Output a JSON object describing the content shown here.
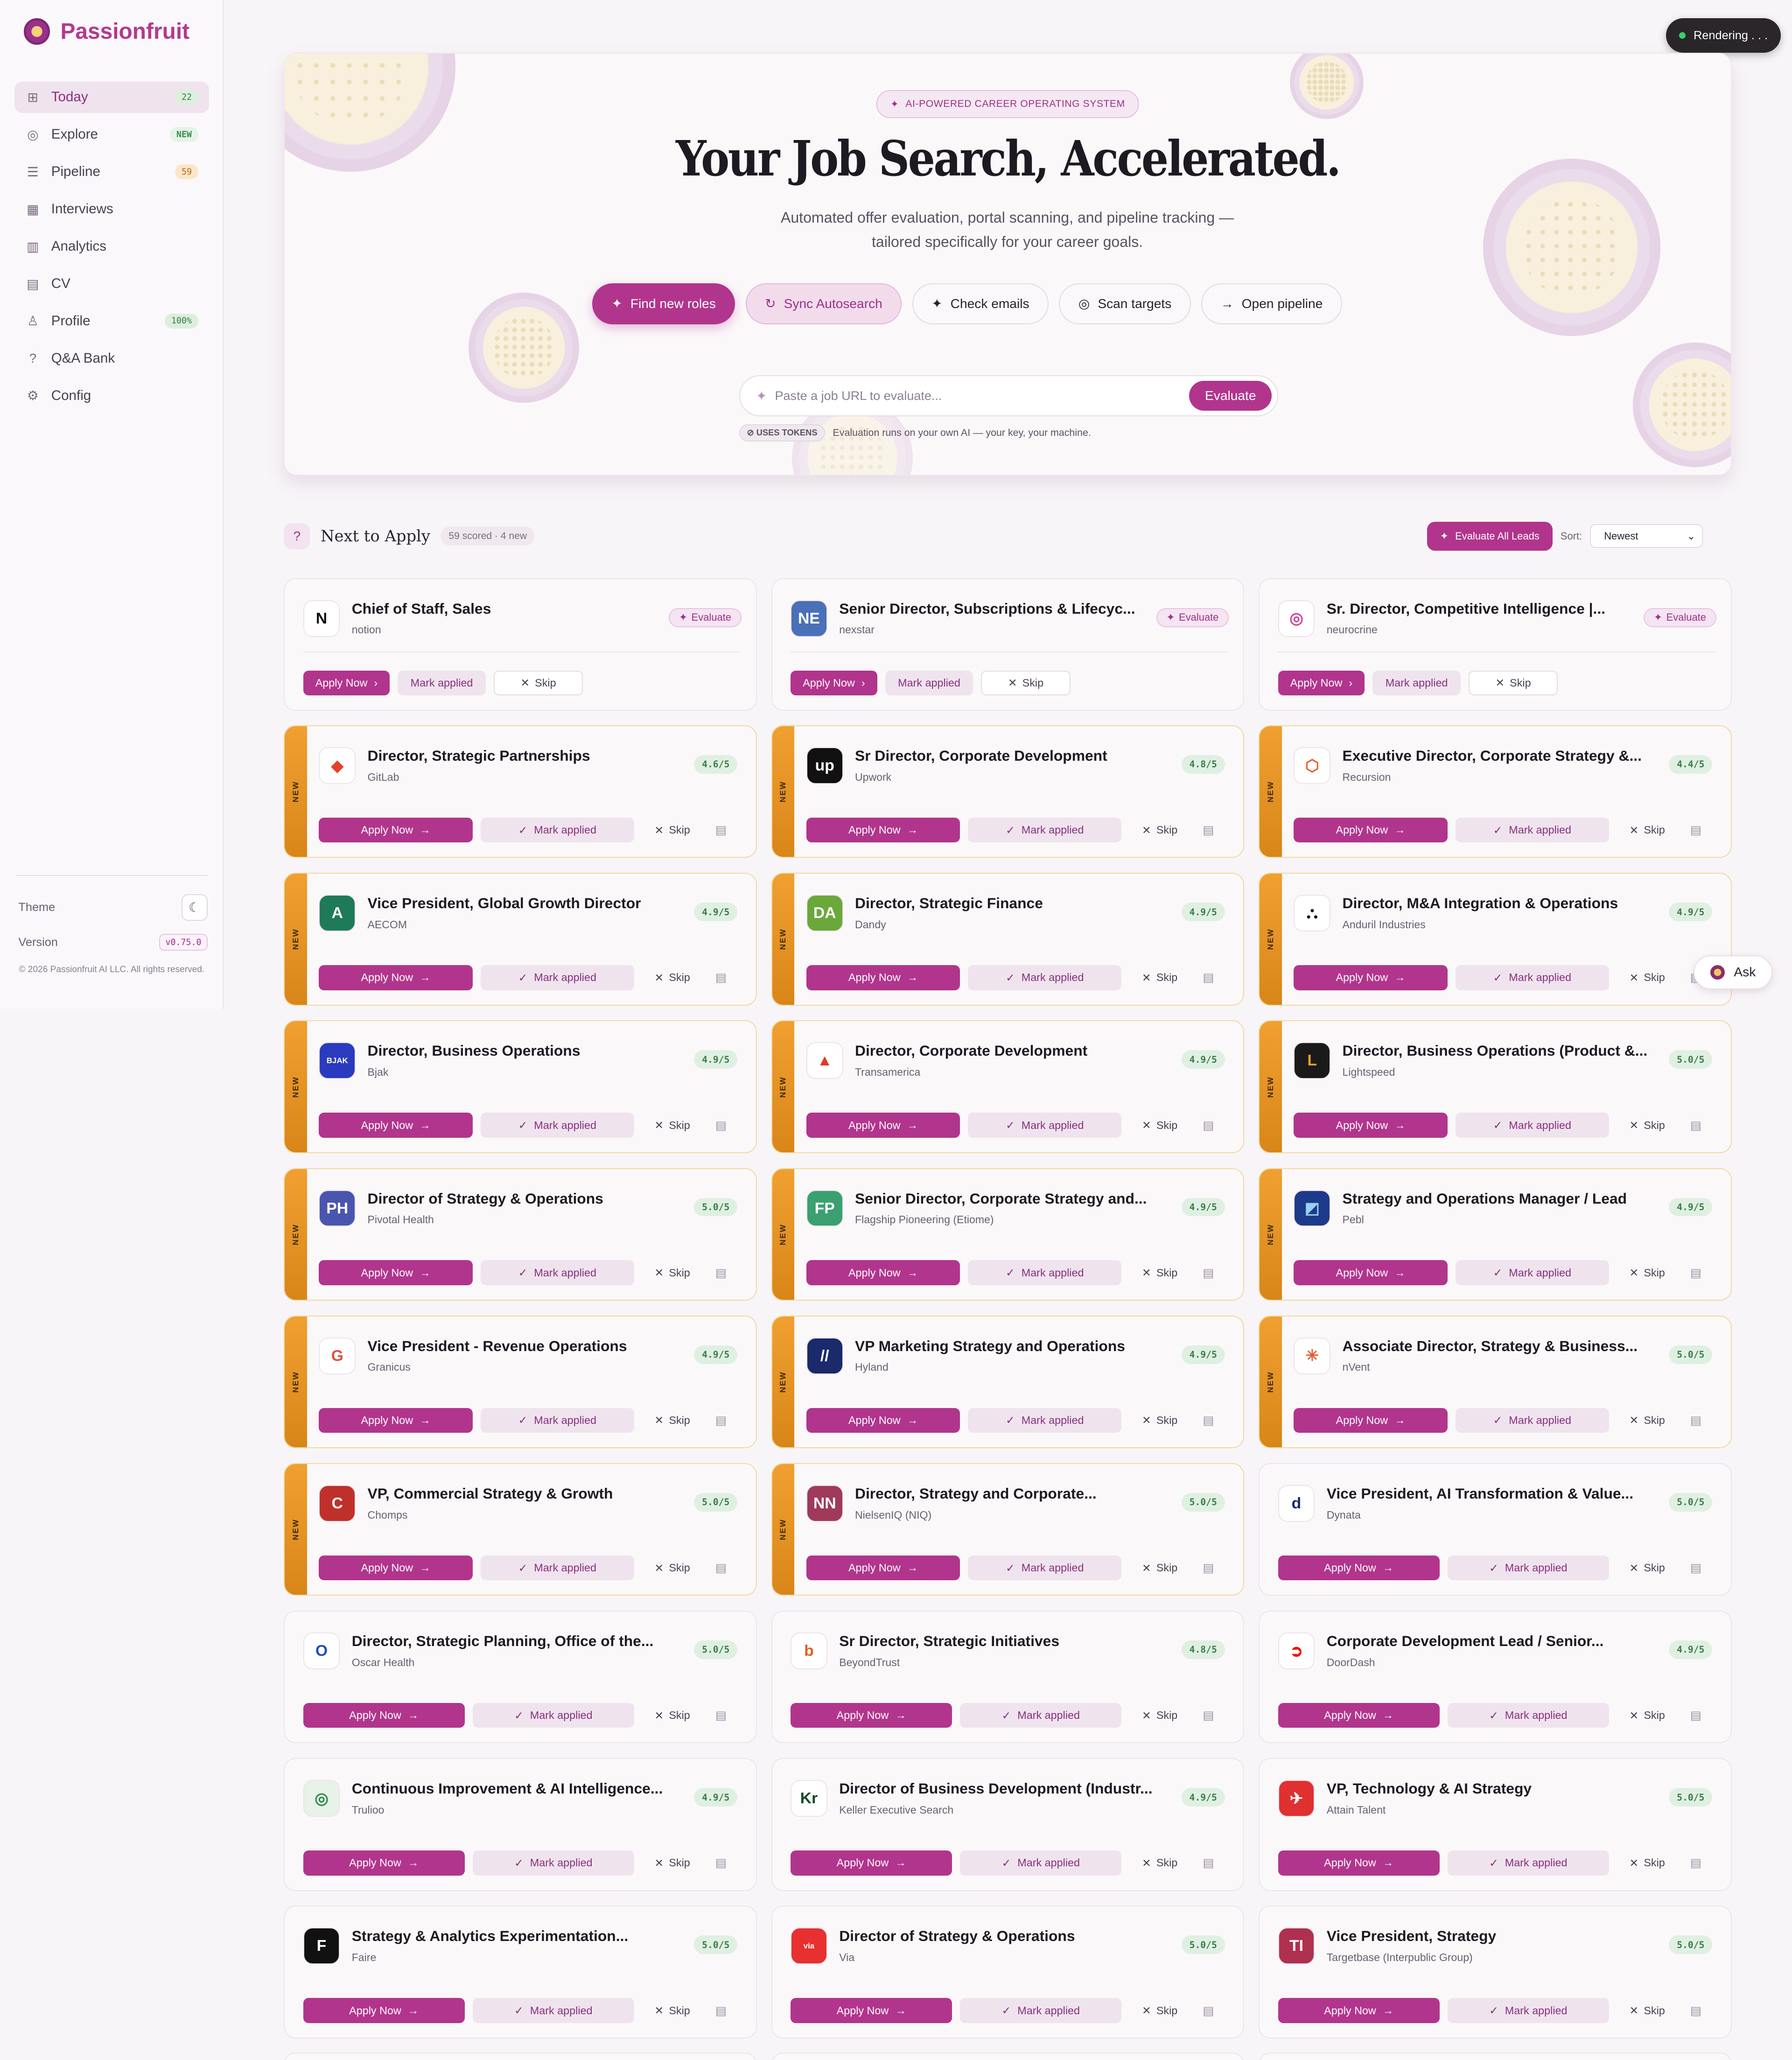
{
  "app": {
    "name": "Passionfruit",
    "status": "Rendering . . ."
  },
  "sidebar": {
    "items": [
      {
        "label": "Today",
        "icon": "grid-icon",
        "badge": "22",
        "active": true
      },
      {
        "label": "Explore",
        "icon": "compass-icon",
        "badge": "NEW"
      },
      {
        "label": "Pipeline",
        "icon": "list-icon",
        "badge": "59"
      },
      {
        "label": "Interviews",
        "icon": "calendar-icon",
        "badge": ""
      },
      {
        "label": "Analytics",
        "icon": "bar-chart-icon",
        "badge": ""
      },
      {
        "label": "CV",
        "icon": "document-icon",
        "badge": ""
      },
      {
        "label": "Profile",
        "icon": "user-icon",
        "badge": "100%"
      },
      {
        "label": "Q&A Bank",
        "icon": "question-icon",
        "badge": ""
      },
      {
        "label": "Config",
        "icon": "gear-icon",
        "badge": ""
      }
    ],
    "theme_label": "Theme",
    "version_label": "Version",
    "version": "v0.75.0",
    "copyright": "© 2026 Passionfruit AI LLC. All rights reserved."
  },
  "hero": {
    "tag": "AI-POWERED CAREER OPERATING SYSTEM",
    "title": "Your Job Search, Accelerated.",
    "subtitle": "Automated offer evaluation, portal scanning, and pipeline tracking — tailored specifically for your career goals.",
    "actions": [
      "Find new roles",
      "Sync Autosearch",
      "Check emails",
      "Scan targets",
      "Open pipeline"
    ],
    "url_placeholder": "Paste a job URL to evaluate...",
    "evaluate_label": "Evaluate",
    "tokens_badge": "USES TOKENS",
    "tokens_note": "Evaluation runs on your own AI — your key, your machine."
  },
  "section": {
    "title": "Next to Apply",
    "badge": "59 scored · 4 new",
    "evaluate_all": "Evaluate All Leads",
    "sort_label": "Sort:",
    "sort_value": "Newest"
  },
  "labels": {
    "apply": "Apply Now",
    "mark": "Mark applied",
    "skip": "Skip",
    "evaluate": "Evaluate",
    "new": "NEW",
    "ask": "Ask"
  },
  "colors": {
    "accent": "#b1358c",
    "new_bar": "#e8951f",
    "score": "#3b7a4a"
  },
  "leads": [
    {
      "title": "Chief of Staff, Sales",
      "company": "notion",
      "logo": "N",
      "logo_bg": "#ffffff",
      "logo_fg": "#111111"
    },
    {
      "title": "Senior Director, Subscriptions & Lifecyc...",
      "company": "nexstar",
      "logo": "NE",
      "logo_bg": "#4a70b8",
      "logo_fg": "#ffffff"
    },
    {
      "title": "Sr. Director, Competitive Intelligence |...",
      "company": "neurocrine",
      "logo": "◎",
      "logo_bg": "#ffffff",
      "logo_fg": "#d0409a"
    }
  ],
  "jobs": [
    {
      "title": "Director, Strategic Partnerships",
      "company": "GitLab",
      "score": "4.6/5",
      "new": true,
      "logo": "◆",
      "logo_bg": "#ffffff",
      "logo_fg": "#e2432a"
    },
    {
      "title": "Sr Director, Corporate Development",
      "company": "Upwork",
      "score": "4.8/5",
      "new": true,
      "logo": "up",
      "logo_bg": "#111111",
      "logo_fg": "#ffffff"
    },
    {
      "title": "Executive Director, Corporate Strategy &...",
      "company": "Recursion",
      "score": "4.4/5",
      "new": true,
      "logo": "⬡",
      "logo_bg": "#ffffff",
      "logo_fg": "#e05a30"
    },
    {
      "title": "Vice President, Global Growth Director",
      "company": "AECOM",
      "score": "4.9/5",
      "new": true,
      "logo": "A",
      "logo_bg": "#1f7a5a",
      "logo_fg": "#ffffff"
    },
    {
      "title": "Director, Strategic Finance",
      "company": "Dandy",
      "score": "4.9/5",
      "new": true,
      "logo": "DA",
      "logo_bg": "#6aa83a",
      "logo_fg": "#ffffff"
    },
    {
      "title": "Director, M&A Integration & Operations",
      "company": "Anduril Industries",
      "score": "4.9/5",
      "new": true,
      "logo": "⛬",
      "logo_bg": "#ffffff",
      "logo_fg": "#111111"
    },
    {
      "title": "Director, Business Operations",
      "company": "Bjak",
      "score": "4.9/5",
      "new": true,
      "logo": "BJAK",
      "logo_bg": "#2a3bc0",
      "logo_fg": "#ffffff"
    },
    {
      "title": "Director, Corporate Development",
      "company": "Transamerica",
      "score": "4.9/5",
      "new": true,
      "logo": "▲",
      "logo_bg": "#ffffff",
      "logo_fg": "#e03a20"
    },
    {
      "title": "Director, Business Operations (Product &...",
      "company": "Lightspeed",
      "score": "5.0/5",
      "new": true,
      "logo": "L",
      "logo_bg": "#1a1a1a",
      "logo_fg": "#e8a030"
    },
    {
      "title": "Director of Strategy & Operations",
      "company": "Pivotal Health",
      "score": "5.0/5",
      "new": true,
      "logo": "PH",
      "logo_bg": "#4a55b0",
      "logo_fg": "#ffffff"
    },
    {
      "title": "Senior Director, Corporate Strategy and...",
      "company": "Flagship Pioneering (Etiome)",
      "score": "4.9/5",
      "new": true,
      "logo": "FP",
      "logo_bg": "#3aa070",
      "logo_fg": "#ffffff"
    },
    {
      "title": "Strategy and Operations Manager / Lead",
      "company": "Pebl",
      "score": "4.9/5",
      "new": true,
      "logo": "◩",
      "logo_bg": "#1e3a8a",
      "logo_fg": "#9ad0f0"
    },
    {
      "title": "Vice President - Revenue Operations",
      "company": "Granicus",
      "score": "4.9/5",
      "new": true,
      "logo": "G",
      "logo_bg": "#ffffff",
      "logo_fg": "#e05040"
    },
    {
      "title": "VP Marketing Strategy and Operations",
      "company": "Hyland",
      "score": "4.9/5",
      "new": true,
      "logo": "//",
      "logo_bg": "#1a2a6a",
      "logo_fg": "#ffffff"
    },
    {
      "title": "Associate Director, Strategy & Business...",
      "company": "nVent",
      "score": "5.0/5",
      "new": true,
      "logo": "✳",
      "logo_bg": "#ffffff",
      "logo_fg": "#e05a30"
    },
    {
      "title": "VP, Commercial Strategy & Growth",
      "company": "Chomps",
      "score": "5.0/5",
      "new": true,
      "logo": "C",
      "logo_bg": "#c0302a",
      "logo_fg": "#ffffff"
    },
    {
      "title": "Director, Strategy and Corporate...",
      "company": "NielsenIQ (NIQ)",
      "score": "5.0/5",
      "new": true,
      "logo": "NN",
      "logo_bg": "#a03a5a",
      "logo_fg": "#ffffff"
    },
    {
      "title": "Vice President, AI Transformation & Value...",
      "company": "Dynata",
      "score": "5.0/5",
      "new": false,
      "logo": "d",
      "logo_bg": "#ffffff",
      "logo_fg": "#1a2a6a"
    },
    {
      "title": "Director, Strategic Planning, Office of the...",
      "company": "Oscar Health",
      "score": "5.0/5",
      "new": false,
      "logo": "O",
      "logo_bg": "#ffffff",
      "logo_fg": "#1a50c0"
    },
    {
      "title": "Sr Director, Strategic Initiatives",
      "company": "BeyondTrust",
      "score": "4.8/5",
      "new": false,
      "logo": "b",
      "logo_bg": "#ffffff",
      "logo_fg": "#e06020"
    },
    {
      "title": "Corporate Development Lead / Senior...",
      "company": "DoorDash",
      "score": "4.9/5",
      "new": false,
      "logo": "➲",
      "logo_bg": "#ffffff",
      "logo_fg": "#eb1700"
    },
    {
      "title": "Continuous Improvement & AI Intelligence...",
      "company": "Trulioo",
      "score": "4.9/5",
      "new": false,
      "logo": "◎",
      "logo_bg": "#e8f2e8",
      "logo_fg": "#2a8a4a"
    },
    {
      "title": "Director of Business Development (Industr...",
      "company": "Keller Executive Search",
      "score": "4.9/5",
      "new": false,
      "logo": "Kr",
      "logo_bg": "#ffffff",
      "logo_fg": "#1a4a2a"
    },
    {
      "title": "VP, Technology & AI Strategy",
      "company": "Attain Talent",
      "score": "5.0/5",
      "new": false,
      "logo": "✈",
      "logo_bg": "#e03030",
      "logo_fg": "#ffffff"
    },
    {
      "title": "Strategy & Analytics Experimentation...",
      "company": "Faire",
      "score": "5.0/5",
      "new": false,
      "logo": "F",
      "logo_bg": "#111111",
      "logo_fg": "#ffffff"
    },
    {
      "title": "Director of Strategy & Operations",
      "company": "Via",
      "score": "5.0/5",
      "new": false,
      "logo": "via",
      "logo_bg": "#e83030",
      "logo_fg": "#ffffff"
    },
    {
      "title": "Vice President, Strategy",
      "company": "Targetbase (Interpublic Group)",
      "score": "5.0/5",
      "new": false,
      "logo": "TI",
      "logo_bg": "#b03050",
      "logo_fg": "#ffffff"
    }
  ]
}
